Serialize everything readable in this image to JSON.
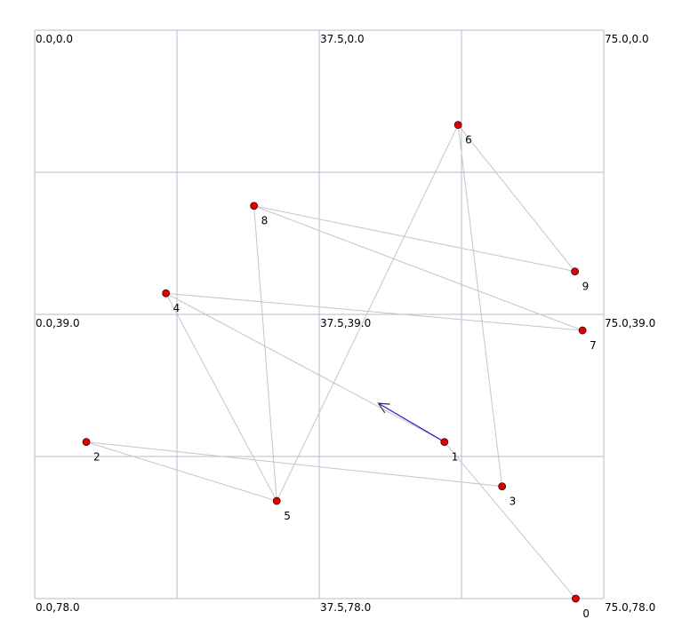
{
  "grid": {
    "x_range": [
      0,
      75
    ],
    "y_range": [
      0,
      78
    ],
    "x_ticks": [
      0,
      18.75,
      37.5,
      56.25,
      75
    ],
    "y_ticks": [
      0,
      19.5,
      39,
      58.5,
      78
    ],
    "line_color": "#b8b8d0"
  },
  "corner_labels": [
    {
      "text": "0.0,0.0",
      "x": 0,
      "y": 0
    },
    {
      "text": "37.5,0.0",
      "x": 37.5,
      "y": 0
    },
    {
      "text": "75.0,0.0",
      "x": 75,
      "y": 0
    },
    {
      "text": "0.0,39.0",
      "x": 0,
      "y": 39
    },
    {
      "text": "37.5,39.0",
      "x": 37.5,
      "y": 39
    },
    {
      "text": "75.0,39.0",
      "x": 75,
      "y": 39
    },
    {
      "text": "0.0,78.0",
      "x": 0,
      "y": 78
    },
    {
      "text": "37.5,78.0",
      "x": 37.5,
      "y": 78
    },
    {
      "text": "75.0,78.0",
      "x": 75,
      "y": 78
    }
  ],
  "nodes": [
    {
      "label": "0",
      "x": 71.3,
      "y": 78.0
    },
    {
      "label": "1",
      "x": 54.0,
      "y": 56.5
    },
    {
      "label": "2",
      "x": 6.8,
      "y": 56.5
    },
    {
      "label": "3",
      "x": 61.6,
      "y": 62.6
    },
    {
      "label": "4",
      "x": 17.3,
      "y": 36.1
    },
    {
      "label": "5",
      "x": 31.9,
      "y": 64.6
    },
    {
      "label": "6",
      "x": 55.8,
      "y": 13.0
    },
    {
      "label": "7",
      "x": 72.2,
      "y": 41.2
    },
    {
      "label": "8",
      "x": 28.9,
      "y": 24.1
    },
    {
      "label": "9",
      "x": 71.2,
      "y": 33.1
    }
  ],
  "path_order": [
    "0",
    "1",
    "4",
    "7",
    "8",
    "9",
    "6",
    "3",
    "2",
    "5",
    "6"
  ],
  "extra_edges": [
    [
      "4",
      "5"
    ],
    [
      "5",
      "8"
    ]
  ],
  "heading": {
    "from": "1",
    "to_x": 45.3,
    "to_y": 51.2,
    "color": "#1a1acc"
  },
  "colors": {
    "node_fill": "#e00000",
    "path": "#c4c4cc",
    "background": "#ffffff"
  }
}
